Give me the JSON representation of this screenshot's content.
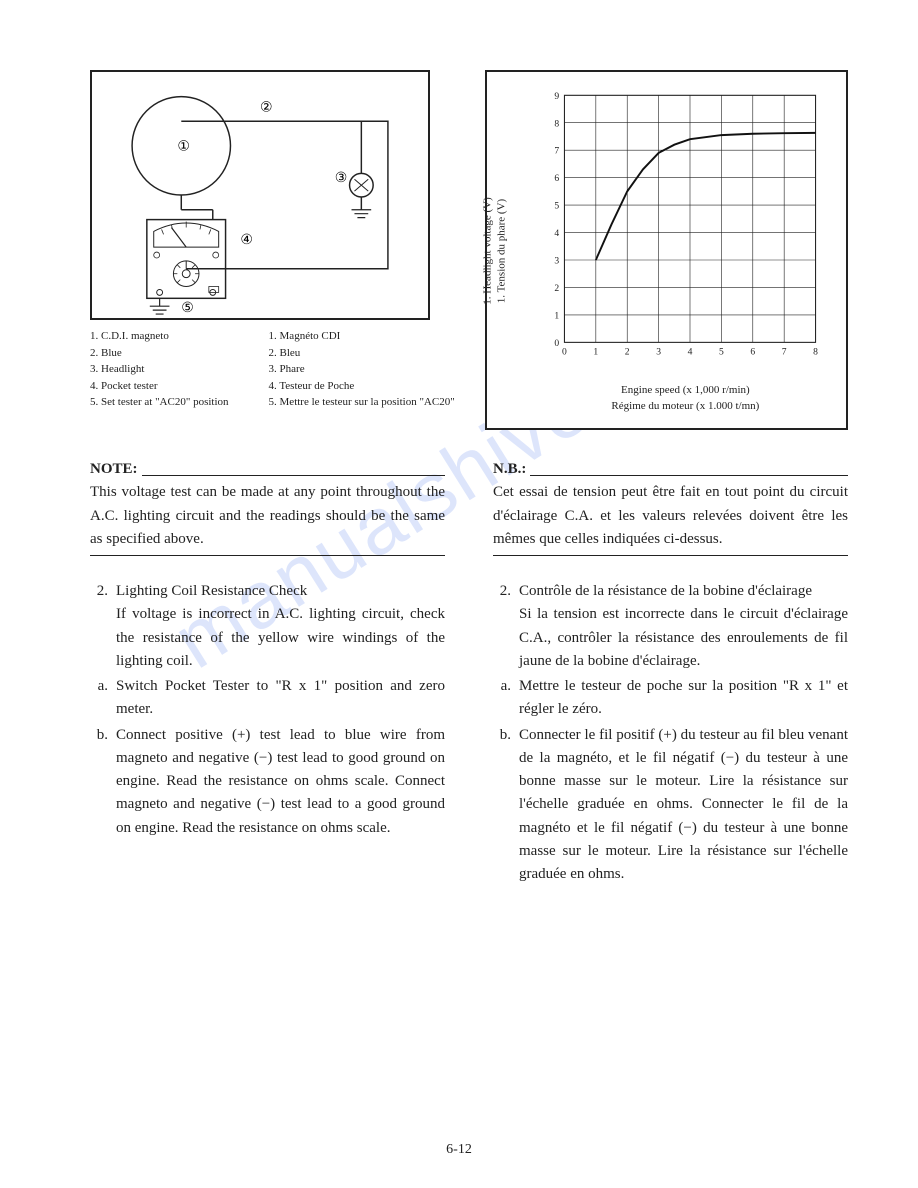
{
  "watermark": "manualshive.com",
  "circuit_diagram": {
    "callouts": [
      "①",
      "②",
      "③",
      "④",
      "⑤"
    ],
    "legend_en": [
      "1.  C.D.I. magneto",
      "2.  Blue",
      "3.  Headlight",
      "4.  Pocket tester",
      "5.  Set tester at \"AC20\" position"
    ],
    "legend_fr": [
      "1.  Magnéto CDI",
      "2.  Bleu",
      "3.  Phare",
      "4.  Testeur de Poche",
      "5.  Mettre le testeur sur la position \"AC20\""
    ]
  },
  "chart": {
    "type": "line",
    "ylabel_en": "1.  Headlight voltage (V)",
    "ylabel_fr": "1.  Tension du phare (V)",
    "xlabel_en": "Engine speed (x 1,000 r/min)",
    "xlabel_fr": "Régime du moteur (x 1.000 t/mn)",
    "xlim": [
      0,
      8
    ],
    "ylim": [
      0,
      9
    ],
    "xtick_step": 1,
    "ytick_step": 1,
    "curve_points": [
      [
        1,
        3.0
      ],
      [
        1.5,
        4.3
      ],
      [
        2,
        5.5
      ],
      [
        2.5,
        6.3
      ],
      [
        3,
        6.9
      ],
      [
        3.5,
        7.2
      ],
      [
        4,
        7.4
      ],
      [
        5,
        7.55
      ],
      [
        6,
        7.6
      ],
      [
        7,
        7.62
      ],
      [
        8,
        7.63
      ]
    ],
    "grid_color": "#222",
    "line_color": "#111",
    "line_width": 2.2,
    "background_color": "#ffffff",
    "label_fontsize": 11
  },
  "note_en": {
    "head": "NOTE:",
    "body": "This voltage test can be made at any point throughout the A.C. lighting circuit and the readings should be the same as specified above."
  },
  "note_fr": {
    "head": "N.B.:",
    "body": "Cet essai de tension peut être fait en tout point du circuit d'éclairage C.A. et les valeurs relevées doivent être les mêmes que celles indiquées ci-dessus."
  },
  "list_en": {
    "num": "2.",
    "title": "Lighting Coil Resistance Check",
    "intro": "If voltage is incorrect in A.C. lighting circuit, check the resistance of the yellow wire windings of the lighting coil.",
    "a": "Switch Pocket Tester to \"R x 1\" position and zero meter.",
    "b": "Connect positive (+) test lead to blue wire from magneto and negative (−) test lead to good ground on engine. Read the resistance on ohms scale. Connect magneto and negative (−) test lead to a good ground on engine. Read the resistance on ohms scale."
  },
  "list_fr": {
    "num": "2.",
    "title": "Contrôle de la résistance de la bobine d'éclairage",
    "intro": "Si la tension est incorrecte dans le circuit d'éclairage C.A., contrôler la résistance des enroulements de fil jaune de la bobine d'éclairage.",
    "a": "Mettre le testeur de poche sur la position \"R x 1\" et régler le zéro.",
    "b": "Connecter le fil positif (+) du testeur au fil bleu venant de la magnéto, et le fil négatif (−) du testeur à une bonne masse sur le moteur. Lire la résistance sur l'échelle graduée en ohms. Connecter le fil de la magnéto et le fil négatif (−) du testeur à une bonne masse sur le moteur. Lire la résistance sur l'échelle graduée en ohms."
  },
  "page_number": "6-12"
}
